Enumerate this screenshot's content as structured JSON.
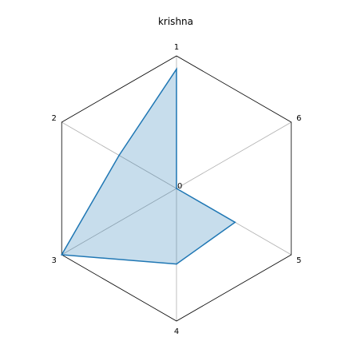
{
  "chart_data": {
    "type": "radar",
    "title": "krishna",
    "axes": [
      "1",
      "2",
      "3",
      "4",
      "5",
      "6"
    ],
    "center_label": "0",
    "range": [
      0,
      1
    ],
    "grid": true,
    "series": [
      {
        "values": [
          0.9,
          0.5,
          1.0,
          0.57,
          0.51,
          0.0
        ]
      }
    ],
    "colors": {
      "line": "#1f77b4",
      "fill": "#1f77b4",
      "fill_opacity": 0.25,
      "frame": "#000000",
      "grid": "#b0b0b0"
    }
  }
}
